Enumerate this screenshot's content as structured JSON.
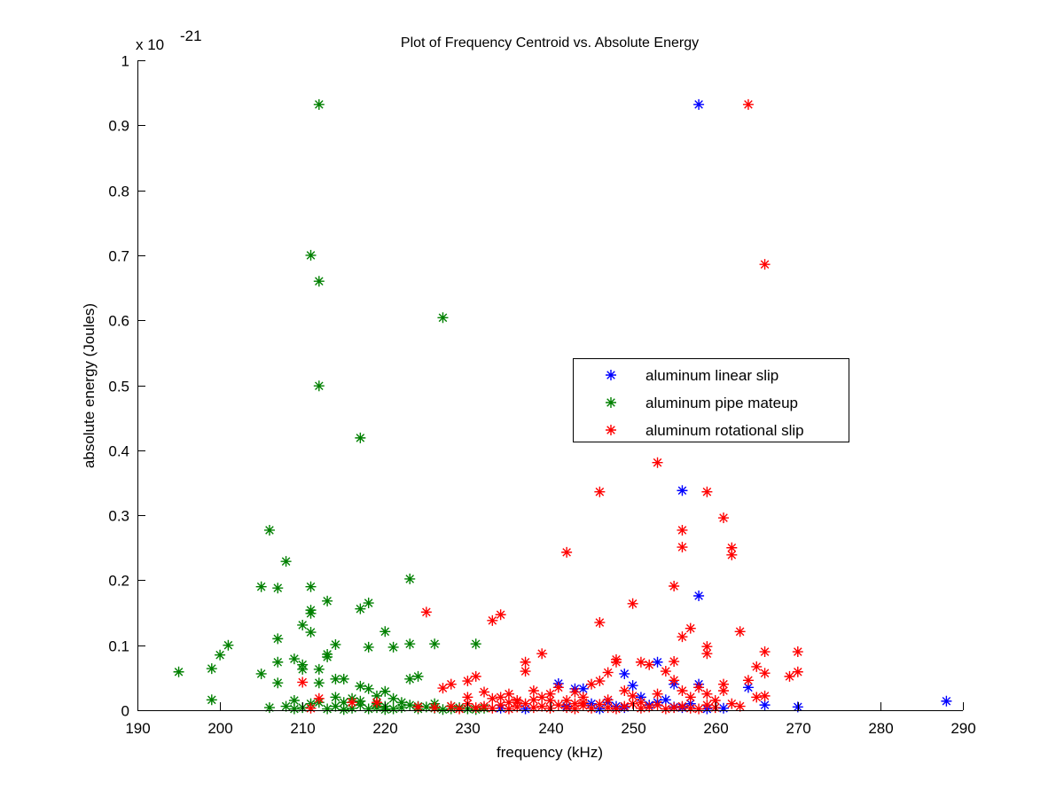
{
  "chart_data": {
    "type": "scatter",
    "title": "Plot of Frequency Centroid vs. Absolute Energy",
    "xlabel": "frequency (kHz)",
    "ylabel": "absolute energy (Joules)",
    "y_multiplier_label": {
      "base": "x 10",
      "exponent": "-21"
    },
    "xlim": [
      190,
      290
    ],
    "ylim": [
      0,
      1
    ],
    "xticks": [
      190,
      200,
      210,
      220,
      230,
      240,
      250,
      260,
      270,
      280,
      290
    ],
    "xtick_labels": [
      "190",
      "200",
      "210",
      "220",
      "230",
      "240",
      "250",
      "260",
      "270",
      "280",
      "290"
    ],
    "yticks": [
      0,
      0.1,
      0.2,
      0.3,
      0.4,
      0.5,
      0.6,
      0.7,
      0.8,
      0.9,
      1
    ],
    "ytick_labels": [
      "0",
      "0.1",
      "0.2",
      "0.3",
      "0.4",
      "0.5",
      "0.6",
      "0.7",
      "0.8",
      "0.9",
      "1"
    ],
    "grid": false,
    "legend_position": "center-right",
    "marker": "asterisk",
    "series": [
      {
        "name": "aluminum linear slip",
        "color": "#0000ff",
        "points": [
          [
            258,
            0.932
          ],
          [
            256,
            0.338
          ],
          [
            258,
            0.176
          ],
          [
            253,
            0.074
          ],
          [
            249,
            0.056
          ],
          [
            250,
            0.038
          ],
          [
            241,
            0.041
          ],
          [
            243,
            0.033
          ],
          [
            244,
            0.033
          ],
          [
            255,
            0.04
          ],
          [
            258,
            0.04
          ],
          [
            264,
            0.035
          ],
          [
            266,
            0.008
          ],
          [
            261,
            0.003
          ],
          [
            270,
            0.005
          ],
          [
            288,
            0.014
          ],
          [
            255,
            0.005
          ],
          [
            254,
            0.016
          ],
          [
            252,
            0.008
          ],
          [
            234,
            0.003
          ],
          [
            245,
            0.01
          ],
          [
            247,
            0.012
          ],
          [
            248,
            0.006
          ],
          [
            251,
            0.02
          ],
          [
            253,
            0.012
          ],
          [
            256,
            0.004
          ],
          [
            259,
            0.002
          ],
          [
            246,
            0.002
          ],
          [
            242,
            0.006
          ],
          [
            237,
            0.002
          ],
          [
            249,
            0.004
          ],
          [
            257,
            0.01
          ]
        ]
      },
      {
        "name": "aluminum pipe mateup",
        "color": "#008000",
        "points": [
          [
            212,
            0.932
          ],
          [
            211,
            0.7
          ],
          [
            212,
            0.66
          ],
          [
            212,
            0.499
          ],
          [
            217,
            0.419
          ],
          [
            227,
            0.604
          ],
          [
            206,
            0.277
          ],
          [
            208,
            0.229
          ],
          [
            205,
            0.19
          ],
          [
            207,
            0.188
          ],
          [
            211,
            0.19
          ],
          [
            223,
            0.202
          ],
          [
            213,
            0.168
          ],
          [
            218,
            0.165
          ],
          [
            217,
            0.156
          ],
          [
            211,
            0.154
          ],
          [
            211,
            0.149
          ],
          [
            210,
            0.131
          ],
          [
            220,
            0.121
          ],
          [
            211,
            0.12
          ],
          [
            195,
            0.059
          ],
          [
            201,
            0.1
          ],
          [
            200,
            0.085
          ],
          [
            199,
            0.064
          ],
          [
            199,
            0.016
          ],
          [
            205,
            0.056
          ],
          [
            207,
            0.11
          ],
          [
            207,
            0.074
          ],
          [
            207,
            0.042
          ],
          [
            209,
            0.079
          ],
          [
            210,
            0.07
          ],
          [
            210,
            0.063
          ],
          [
            212,
            0.042
          ],
          [
            212,
            0.063
          ],
          [
            213,
            0.086
          ],
          [
            213,
            0.082
          ],
          [
            214,
            0.101
          ],
          [
            214,
            0.048
          ],
          [
            215,
            0.048
          ],
          [
            218,
            0.097
          ],
          [
            221,
            0.097
          ],
          [
            223,
            0.102
          ],
          [
            226,
            0.102
          ],
          [
            231,
            0.102
          ],
          [
            223,
            0.048
          ],
          [
            224,
            0.052
          ],
          [
            217,
            0.037
          ],
          [
            218,
            0.033
          ],
          [
            220,
            0.029
          ],
          [
            206,
            0.004
          ],
          [
            209,
            0.015
          ],
          [
            208,
            0.006
          ],
          [
            210,
            0.004
          ],
          [
            211,
            0.01
          ],
          [
            213,
            0.002
          ],
          [
            214,
            0.006
          ],
          [
            215,
            0.012
          ],
          [
            216,
            0.003
          ],
          [
            217,
            0.008
          ],
          [
            218,
            0.002
          ],
          [
            219,
            0.01
          ],
          [
            219,
            0.004
          ],
          [
            220,
            0.006
          ],
          [
            221,
            0.002
          ],
          [
            222,
            0.012
          ],
          [
            222,
            0.004
          ],
          [
            223,
            0.008
          ],
          [
            224,
            0.002
          ],
          [
            225,
            0.005
          ],
          [
            226,
            0.003
          ],
          [
            227,
            0.001
          ],
          [
            228,
            0.002
          ],
          [
            229,
            0.004
          ],
          [
            230,
            0.002
          ],
          [
            231,
            0.001
          ],
          [
            232,
            0.003
          ],
          [
            214,
            0.02
          ],
          [
            216,
            0.018
          ],
          [
            219,
            0.022
          ],
          [
            212,
            0.012
          ],
          [
            221,
            0.018
          ],
          [
            224,
            0.006
          ],
          [
            226,
            0.01
          ],
          [
            228,
            0.006
          ],
          [
            215,
            0.001
          ],
          [
            217,
            0.014
          ],
          [
            209,
            0.002
          ],
          [
            220,
            0.001
          ]
        ]
      },
      {
        "name": "aluminum rotational slip",
        "color": "#ff0000",
        "points": [
          [
            264,
            0.932
          ],
          [
            266,
            0.686
          ],
          [
            253,
            0.381
          ],
          [
            259,
            0.336
          ],
          [
            246,
            0.336
          ],
          [
            261,
            0.296
          ],
          [
            256,
            0.277
          ],
          [
            262,
            0.25
          ],
          [
            256,
            0.251
          ],
          [
            262,
            0.239
          ],
          [
            242,
            0.243
          ],
          [
            255,
            0.191
          ],
          [
            250,
            0.164
          ],
          [
            225,
            0.151
          ],
          [
            234,
            0.147
          ],
          [
            233,
            0.138
          ],
          [
            246,
            0.135
          ],
          [
            263,
            0.121
          ],
          [
            257,
            0.126
          ],
          [
            256,
            0.113
          ],
          [
            259,
            0.098
          ],
          [
            259,
            0.087
          ],
          [
            266,
            0.09
          ],
          [
            270,
            0.09
          ],
          [
            239,
            0.087
          ],
          [
            237,
            0.074
          ],
          [
            237,
            0.06
          ],
          [
            265,
            0.067
          ],
          [
            266,
            0.057
          ],
          [
            269,
            0.052
          ],
          [
            270,
            0.059
          ],
          [
            210,
            0.043
          ],
          [
            211,
            0.003
          ],
          [
            212,
            0.018
          ],
          [
            216,
            0.012
          ],
          [
            219,
            0.012
          ],
          [
            224,
            0.005
          ],
          [
            227,
            0.034
          ],
          [
            228,
            0.04
          ],
          [
            230,
            0.045
          ],
          [
            231,
            0.052
          ],
          [
            232,
            0.028
          ],
          [
            234,
            0.02
          ],
          [
            235,
            0.025
          ],
          [
            236,
            0.015
          ],
          [
            238,
            0.03
          ],
          [
            239,
            0.02
          ],
          [
            240,
            0.025
          ],
          [
            241,
            0.035
          ],
          [
            242,
            0.015
          ],
          [
            243,
            0.028
          ],
          [
            244,
            0.012
          ],
          [
            245,
            0.04
          ],
          [
            246,
            0.045
          ],
          [
            247,
            0.058
          ],
          [
            248,
            0.078
          ],
          [
            248,
            0.074
          ],
          [
            249,
            0.03
          ],
          [
            250,
            0.022
          ],
          [
            251,
            0.074
          ],
          [
            252,
            0.07
          ],
          [
            253,
            0.025
          ],
          [
            254,
            0.06
          ],
          [
            255,
            0.075
          ],
          [
            255,
            0.046
          ],
          [
            256,
            0.03
          ],
          [
            257,
            0.02
          ],
          [
            258,
            0.035
          ],
          [
            259,
            0.025
          ],
          [
            260,
            0.015
          ],
          [
            261,
            0.04
          ],
          [
            261,
            0.03
          ],
          [
            262,
            0.01
          ],
          [
            263,
            0.006
          ],
          [
            264,
            0.046
          ],
          [
            265,
            0.02
          ],
          [
            266,
            0.022
          ],
          [
            226,
            0.004
          ],
          [
            228,
            0.006
          ],
          [
            229,
            0.002
          ],
          [
            230,
            0.01
          ],
          [
            231,
            0.004
          ],
          [
            232,
            0.006
          ],
          [
            233,
            0.003
          ],
          [
            234,
            0.008
          ],
          [
            235,
            0.002
          ],
          [
            236,
            0.005
          ],
          [
            237,
            0.01
          ],
          [
            238,
            0.004
          ],
          [
            239,
            0.006
          ],
          [
            240,
            0.003
          ],
          [
            241,
            0.008
          ],
          [
            242,
            0.004
          ],
          [
            243,
            0.002
          ],
          [
            244,
            0.007
          ],
          [
            245,
            0.003
          ],
          [
            246,
            0.009
          ],
          [
            247,
            0.004
          ],
          [
            248,
            0.002
          ],
          [
            249,
            0.006
          ],
          [
            250,
            0.01
          ],
          [
            251,
            0.003
          ],
          [
            252,
            0.005
          ],
          [
            253,
            0.008
          ],
          [
            254,
            0.002
          ],
          [
            255,
            0.004
          ],
          [
            256,
            0.006
          ],
          [
            257,
            0.003
          ],
          [
            258,
            0.002
          ],
          [
            259,
            0.008
          ],
          [
            260,
            0.004
          ],
          [
            240,
            0.015
          ],
          [
            244,
            0.02
          ],
          [
            236,
            0.012
          ],
          [
            233,
            0.018
          ],
          [
            247,
            0.016
          ],
          [
            251,
            0.012
          ],
          [
            243,
            0.01
          ],
          [
            238,
            0.016
          ],
          [
            230,
            0.02
          ],
          [
            235,
            0.012
          ]
        ]
      }
    ]
  }
}
